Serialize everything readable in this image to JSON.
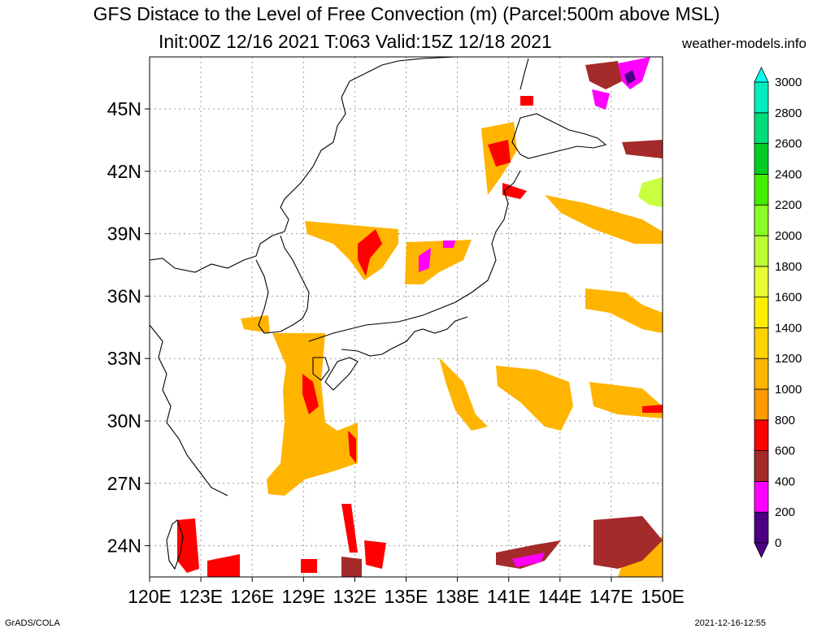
{
  "title": {
    "line1": "GFS Distace to the Level of Free Convection (m) (Parcel:500m above MSL)",
    "line2": "Init:00Z 12/16 2021 T:063 Valid:15Z 12/18 2021",
    "credit": "weather-models.info"
  },
  "footer": {
    "software": "GrADS/COLA",
    "generated": "2021-12-16-12:55"
  },
  "map": {
    "lon_range": [
      120,
      150
    ],
    "lat_range": [
      22.5,
      47.5
    ],
    "lat_ticks": [
      "24N",
      "27N",
      "30N",
      "33N",
      "36N",
      "39N",
      "42N",
      "45N"
    ],
    "lat_values": [
      24,
      27,
      30,
      33,
      36,
      39,
      42,
      45
    ],
    "lon_ticks": [
      "120E",
      "123E",
      "126E",
      "129E",
      "132E",
      "135E",
      "138E",
      "141E",
      "144E",
      "147E",
      "150E"
    ],
    "lon_values": [
      120,
      123,
      126,
      129,
      132,
      135,
      138,
      141,
      144,
      147,
      150
    ]
  },
  "colorbar": {
    "labels": [
      "0",
      "200",
      "400",
      "600",
      "800",
      "1000",
      "1200",
      "1400",
      "1600",
      "1800",
      "2000",
      "2200",
      "2400",
      "2600",
      "2800",
      "3000"
    ],
    "colors": [
      "#4b0082",
      "#ff00ff",
      "#a52a2a",
      "#ff0000",
      "#ff9900",
      "#ffb400",
      "#ffd200",
      "#ffee00",
      "#e6ff33",
      "#bbff33",
      "#88ff22",
      "#44ee00",
      "#00cc22",
      "#00dd77",
      "#00eebb",
      "#00ffee"
    ]
  }
}
